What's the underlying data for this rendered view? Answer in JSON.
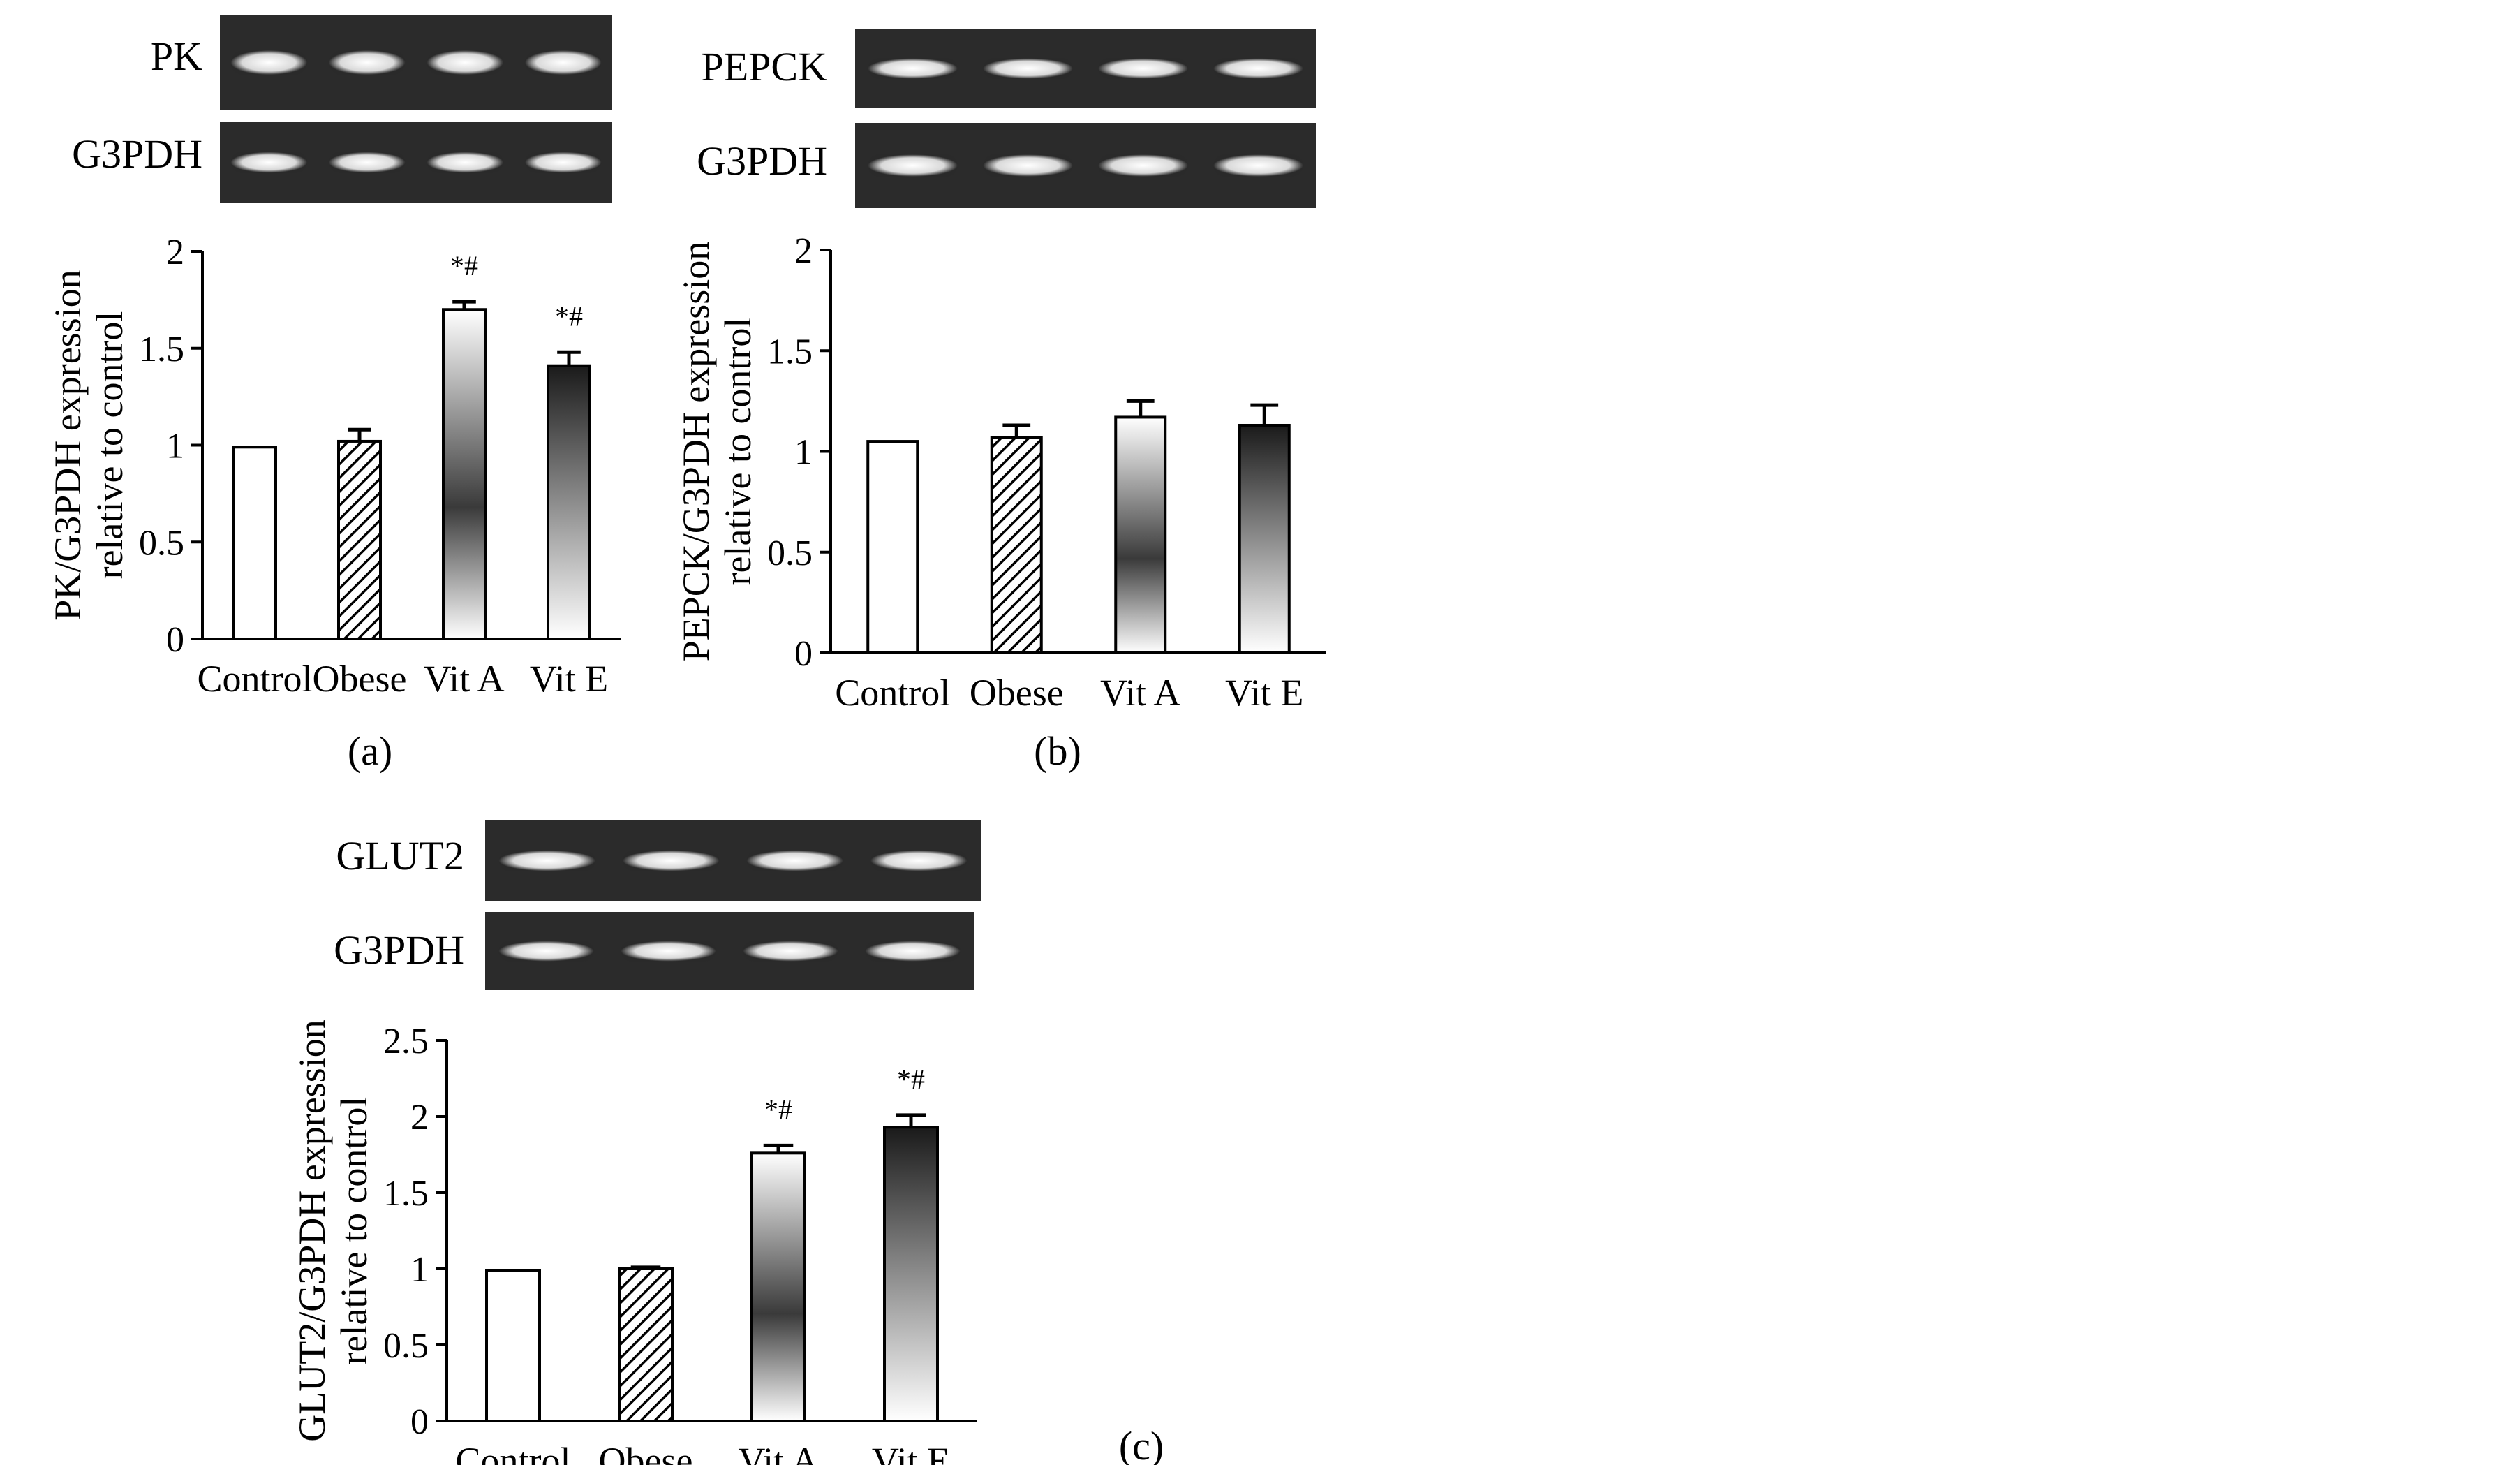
{
  "chart_data": [
    {
      "panel": "(a)",
      "type": "bar",
      "gel_labels": [
        "PK",
        "G3PDH"
      ],
      "categories": [
        "Control",
        "Obese",
        "Vit A",
        "Vit E"
      ],
      "values": [
        0.99,
        1.02,
        1.7,
        1.41
      ],
      "errors": [
        0.0,
        0.06,
        0.04,
        0.07
      ],
      "annotations": [
        "",
        "",
        "*#",
        "*#"
      ],
      "ylabel": [
        "PK/G3PDH expression",
        "relative to control"
      ],
      "ylim": [
        0,
        2
      ],
      "yticks": [
        0,
        0.5,
        1,
        1.5,
        2
      ],
      "ytick_labels": [
        "0",
        "0.5",
        "1",
        "1.5",
        "2"
      ],
      "fills": [
        "white",
        "hatch",
        "gradient-mid-dark",
        "gradient-dark-top"
      ]
    },
    {
      "panel": "(b)",
      "type": "bar",
      "gel_labels": [
        "PEPCK",
        "G3PDH"
      ],
      "categories": [
        "Control",
        "Obese",
        "Vit A",
        "Vit E"
      ],
      "values": [
        1.05,
        1.07,
        1.17,
        1.13
      ],
      "errors": [
        0.0,
        0.06,
        0.08,
        0.1
      ],
      "annotations": [
        "",
        "",
        "",
        ""
      ],
      "ylabel": [
        "PEPCK/G3PDH expression",
        "relative to control"
      ],
      "ylim": [
        0,
        2
      ],
      "yticks": [
        0,
        0.5,
        1,
        1.5,
        2
      ],
      "ytick_labels": [
        "0",
        "0.5",
        "1",
        "1.5",
        "2"
      ],
      "fills": [
        "white",
        "hatch",
        "gradient-mid-dark",
        "gradient-dark-top"
      ]
    },
    {
      "panel": "(c)",
      "type": "bar",
      "gel_labels": [
        "GLUT2",
        "G3PDH"
      ],
      "categories": [
        "Control",
        "Obese",
        "Vit A",
        "Vit E"
      ],
      "values": [
        0.99,
        1.0,
        1.76,
        1.93
      ],
      "errors": [
        0.0,
        0.01,
        0.05,
        0.08
      ],
      "annotations": [
        "",
        "",
        "*#",
        "*#"
      ],
      "ylabel": [
        "GLUT2/G3PDH expression",
        "relative to control"
      ],
      "ylim": [
        0,
        2.5
      ],
      "yticks": [
        0,
        0.5,
        1,
        1.5,
        2,
        2.5
      ],
      "ytick_labels": [
        "0",
        "0.5",
        "1",
        "1.5",
        "2",
        "2.5"
      ],
      "fills": [
        "white",
        "hatch",
        "gradient-mid-dark",
        "gradient-dark-top"
      ]
    }
  ],
  "gel_band_colors": {
    "background": "#2a2a2a",
    "band": "#e8e8e8"
  }
}
